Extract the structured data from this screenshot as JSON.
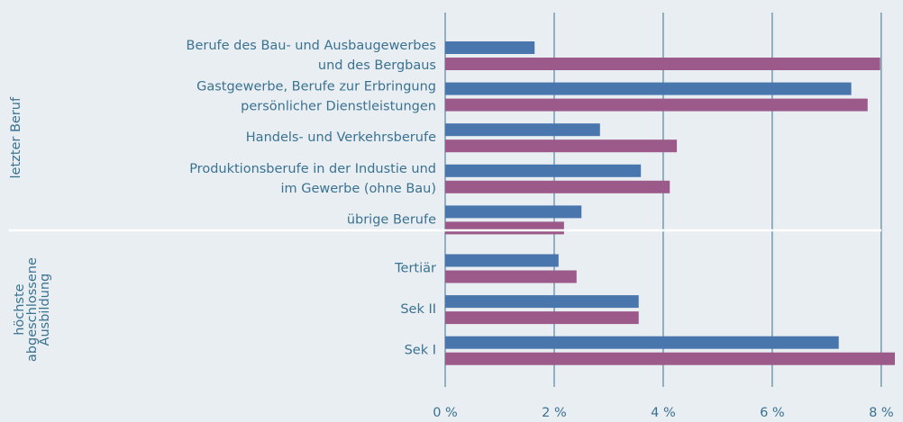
{
  "chart_data": {
    "type": "bar",
    "orientation": "horizontal",
    "groups": [
      {
        "label": [
          "letzter Beruf"
        ],
        "categories": [
          [
            "Berufe des Bau- und Ausbaugewerbes",
            "und des Bergbaus"
          ],
          [
            "Gastgewerbe, Berufe zur Erbringung",
            "persönlicher Dienstleistungen"
          ],
          [
            "Handels- und Verkehrsberufe"
          ],
          [
            "Produktionsberufe in der Industie und",
            "im Gewerbe (ohne Bau)"
          ],
          [
            "übrige Berufe"
          ]
        ]
      },
      {
        "label": [
          "höchste",
          "abgeschlossene",
          "Ausbildung"
        ],
        "categories": [
          [
            "Tertiär"
          ],
          [
            "Sek II"
          ],
          [
            "Sek I"
          ]
        ]
      }
    ],
    "series": [
      {
        "color": "#4a76ae",
        "values": [
          1.64,
          7.45,
          2.84,
          3.59,
          2.5,
          2.08,
          3.55,
          7.22
        ]
      },
      {
        "color": "#9c5a8a",
        "values": [
          7.98,
          7.75,
          4.25,
          4.12,
          2.18,
          2.41,
          3.55,
          8.25
        ]
      }
    ],
    "xlim": [
      0,
      8.25
    ],
    "xticks": [
      {
        "value": 0,
        "label": "0 %"
      },
      {
        "value": 2,
        "label": "2 %"
      },
      {
        "value": 4,
        "label": "4 %"
      },
      {
        "value": 6,
        "label": "6 %"
      },
      {
        "value": 8,
        "label": "8 %"
      }
    ],
    "grid": true
  }
}
